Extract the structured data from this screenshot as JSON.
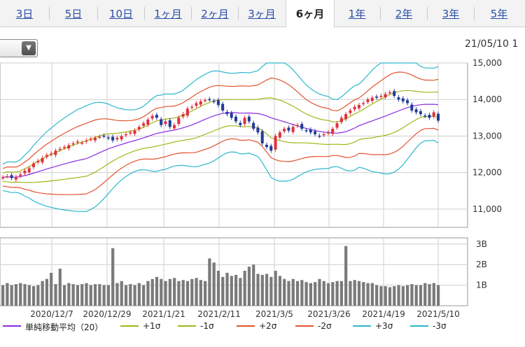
{
  "tabs": [
    {
      "label": "3日",
      "active": false
    },
    {
      "label": "5日",
      "active": false
    },
    {
      "label": "10日",
      "active": false
    },
    {
      "label": "1ヶ月",
      "active": false
    },
    {
      "label": "2ヶ月",
      "active": false
    },
    {
      "label": "3ヶ月",
      "active": false
    },
    {
      "label": "6ヶ月",
      "active": true
    },
    {
      "label": "1年",
      "active": false
    },
    {
      "label": "2年",
      "active": false
    },
    {
      "label": "3年",
      "active": false
    },
    {
      "label": "5年",
      "active": false
    }
  ],
  "toolbar": {
    "dropdown_icon": "chevron-down-icon",
    "dropdown_glyph": "▼",
    "datetime": "21/05/10 1"
  },
  "chart_data": [
    {
      "type": "candlestick",
      "bands": {
        "ma20_color": "#8a2be2",
        "s1_color": "#a0b818",
        "s2_color": "#e2542e",
        "s3_color": "#2ab8cc"
      },
      "up_color": "#e0303a",
      "down_color": "#203a9a",
      "y_ticks": [
        "15,000",
        "14,000",
        "13,000",
        "12,000",
        "11,000"
      ],
      "x_ticks": [
        "2020/12/7",
        "2020/12/29",
        "2021/1/21",
        "2021/2/11",
        "2021/3/5",
        "2021/3/26",
        "2021/4/19",
        "2021/5/10"
      ],
      "ylim": [
        10500,
        15000
      ],
      "grid": true,
      "series_close": [
        11870,
        11900,
        11850,
        11880,
        11950,
        12050,
        12120,
        12250,
        12320,
        12400,
        12480,
        12520,
        12600,
        12650,
        12700,
        12750,
        12800,
        12850,
        12820,
        12880,
        12920,
        12950,
        12980,
        13000,
        12950,
        12880,
        12950,
        13000,
        13050,
        13100,
        13150,
        13250,
        13350,
        13450,
        13550,
        13500,
        13300,
        13400,
        13250,
        13300,
        13500,
        13600,
        13750,
        13800,
        13900,
        13950,
        13980,
        14000,
        13950,
        13850,
        13700,
        13600,
        13500,
        13400,
        13300,
        13500,
        13400,
        13200,
        13100,
        12800,
        12700,
        12600,
        13000,
        13100,
        13200,
        13150,
        13250,
        13300,
        13200,
        13150,
        13100,
        13050,
        13000,
        13050,
        13100,
        13200,
        13350,
        13500,
        13600,
        13700,
        13800,
        13850,
        13900,
        14000,
        14050,
        14050,
        14100,
        14150,
        14200,
        14100,
        14000,
        13950,
        13900,
        13700,
        13650,
        13600,
        13550,
        13500,
        13650,
        13420
      ],
      "volume_label_ticks": [
        "3B",
        "2B",
        "1B"
      ],
      "volume_b": [
        1.0,
        1.1,
        1.0,
        1.05,
        1.1,
        1.05,
        1.0,
        0.95,
        1.0,
        1.2,
        1.3,
        1.6,
        1.05,
        1.8,
        1.0,
        1.1,
        1.05,
        1.0,
        1.05,
        1.1,
        1.0,
        1.05,
        1.05,
        1.0,
        1.0,
        2.8,
        1.1,
        1.2,
        1.0,
        1.05,
        1.0,
        1.1,
        1.0,
        1.2,
        1.3,
        1.4,
        1.3,
        1.2,
        1.3,
        1.35,
        1.2,
        1.25,
        1.2,
        1.3,
        1.35,
        1.25,
        1.2,
        2.3,
        2.1,
        1.7,
        1.4,
        1.6,
        1.45,
        1.5,
        1.35,
        1.7,
        1.9,
        2.0,
        1.55,
        1.5,
        1.55,
        1.4,
        1.7,
        1.45,
        1.3,
        1.2,
        1.3,
        1.2,
        1.25,
        1.15,
        1.1,
        1.15,
        1.3,
        1.2,
        1.1,
        1.15,
        1.2,
        1.2,
        2.9,
        1.2,
        1.25,
        1.2,
        1.15,
        1.1,
        1.1,
        1.0,
        0.95,
        0.95,
        0.9,
        0.95,
        1.0,
        0.95,
        1.0,
        1.05,
        1.0,
        1.0,
        1.1,
        1.05,
        1.1,
        1.0
      ]
    }
  ],
  "legend": [
    {
      "label": "単純移動平均（20）",
      "color": "#8a2be2"
    },
    {
      "label": "+1σ",
      "color": "#a0b818"
    },
    {
      "label": "-1σ",
      "color": "#a0b818"
    },
    {
      "label": "+2σ",
      "color": "#e2542e"
    },
    {
      "label": "-2σ",
      "color": "#e2542e"
    },
    {
      "label": "+3σ",
      "color": "#2ab8cc"
    },
    {
      "label": "-3σ",
      "color": "#2ab8cc"
    }
  ]
}
